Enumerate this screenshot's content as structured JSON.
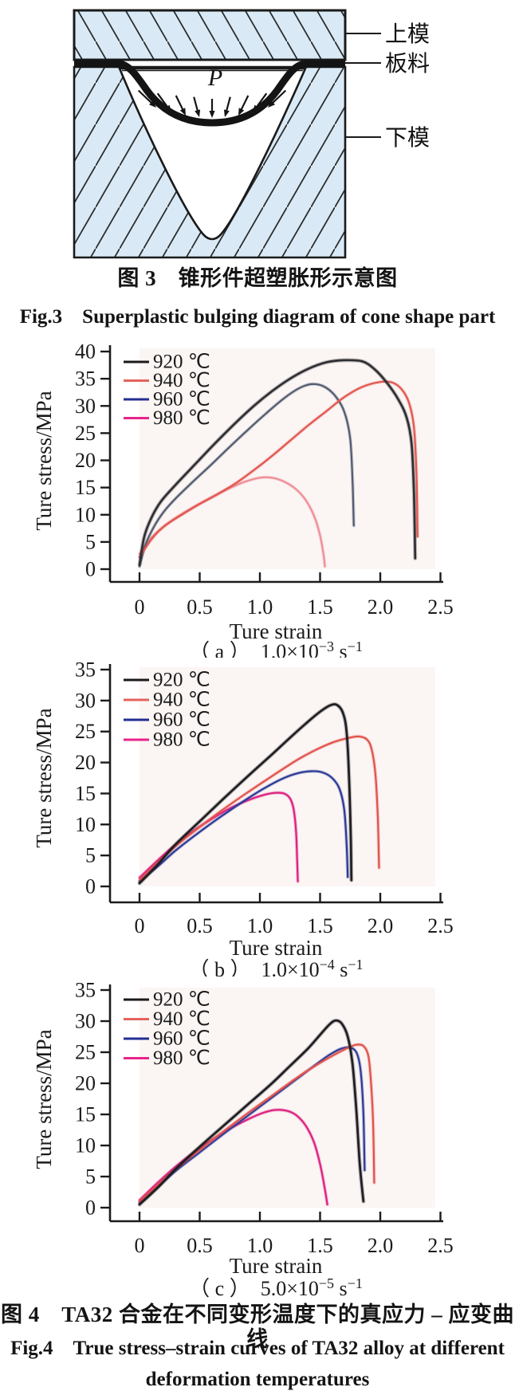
{
  "page": {
    "background": "#ffffff"
  },
  "figure3": {
    "caption_zh": "图 3　锥形件超塑胀形示意图",
    "caption_en": "Fig.3　Superplastic bulging diagram of cone shape part",
    "labels": {
      "upper_die": "上模",
      "sheet": "板料",
      "lower_die": "下模",
      "pressure": "P"
    },
    "colors": {
      "die_fill": "#d9eaf6",
      "outline": "#1a1a1a",
      "sheet": "#141414"
    }
  },
  "figure4": {
    "caption_zh": "图 4　TA32 合金在不同变形温度下的真应力 – 应变曲线",
    "caption_en_line1": "Fig.4　True stress–strain curves of TA32 alloy at different",
    "caption_en_line2": "deformation temperatures"
  },
  "chart_data": [
    {
      "type": "line",
      "id": "a",
      "xlabel": "Ture strain",
      "ylabel": "Ture stress/MPa",
      "caption": {
        "prefix": "（ a ）　",
        "mantissa": "1.0×10",
        "exponent": "−3",
        "unit": " s",
        "unit_exponent": "−1"
      },
      "ylim": [
        0,
        40
      ],
      "xlim": [
        0,
        2.5
      ],
      "yticks": [
        0,
        5,
        10,
        15,
        20,
        25,
        30,
        35,
        40
      ],
      "xticks": {
        "values": [
          0,
          0.5,
          1.0,
          1.5,
          2.0,
          2.5
        ],
        "labels": [
          "0",
          "0.5",
          "1.0",
          "1.5",
          "2.0",
          "2.5"
        ]
      },
      "legend": [
        {
          "label": "920 ℃",
          "color": "#1a1a1a"
        },
        {
          "label": "940 ℃",
          "color": "#e4635c"
        },
        {
          "label": "960 ℃",
          "color": "#232e92"
        },
        {
          "label": "980 ℃",
          "color": "#e8248a"
        }
      ],
      "series": [
        {
          "name": "920 ℃",
          "temperature_C": 920,
          "color": "#2f2f33",
          "points": [
            [
              0,
              0.8
            ],
            [
              0.04,
              6
            ],
            [
              0.1,
              9.5
            ],
            [
              0.18,
              12.5
            ],
            [
              0.3,
              15.5
            ],
            [
              0.45,
              19
            ],
            [
              0.6,
              22.5
            ],
            [
              0.78,
              26.5
            ],
            [
              0.95,
              30
            ],
            [
              1.1,
              32.7
            ],
            [
              1.25,
              35
            ],
            [
              1.4,
              36.8
            ],
            [
              1.55,
              38
            ],
            [
              1.7,
              38.4
            ],
            [
              1.85,
              38.2
            ],
            [
              1.95,
              36.8
            ],
            [
              2.05,
              34.4
            ],
            [
              2.15,
              31.2
            ],
            [
              2.22,
              27.8
            ],
            [
              2.26,
              23
            ],
            [
              2.28,
              14
            ],
            [
              2.29,
              2
            ]
          ]
        },
        {
          "name": "940 ℃",
          "temperature_C": 940,
          "color": "#e2574f",
          "points": [
            [
              0,
              2.2
            ],
            [
              0.1,
              5.5
            ],
            [
              0.2,
              7.8
            ],
            [
              0.35,
              10
            ],
            [
              0.5,
              12
            ],
            [
              0.65,
              13.8
            ],
            [
              0.8,
              15.8
            ],
            [
              0.95,
              18.2
            ],
            [
              1.1,
              20.8
            ],
            [
              1.25,
              23.6
            ],
            [
              1.4,
              26.4
            ],
            [
              1.55,
              29
            ],
            [
              1.7,
              31.6
            ],
            [
              1.85,
              33.5
            ],
            [
              2.0,
              34.4
            ],
            [
              2.1,
              34.3
            ],
            [
              2.18,
              33
            ],
            [
              2.24,
              30.5
            ],
            [
              2.28,
              26
            ],
            [
              2.3,
              18
            ],
            [
              2.31,
              6
            ]
          ]
        },
        {
          "name": "960 ℃",
          "temperature_C": 960,
          "color": "#525c70",
          "points": [
            [
              0,
              0.5
            ],
            [
              0.05,
              4.5
            ],
            [
              0.12,
              7.8
            ],
            [
              0.2,
              10.5
            ],
            [
              0.3,
              13
            ],
            [
              0.45,
              16.2
            ],
            [
              0.6,
              19.3
            ],
            [
              0.75,
              22.5
            ],
            [
              0.9,
              25.6
            ],
            [
              1.05,
              28.6
            ],
            [
              1.2,
              31.4
            ],
            [
              1.33,
              33.3
            ],
            [
              1.43,
              34
            ],
            [
              1.53,
              33.6
            ],
            [
              1.62,
              32
            ],
            [
              1.7,
              29
            ],
            [
              1.75,
              24
            ],
            [
              1.77,
              16
            ],
            [
              1.78,
              8
            ]
          ]
        },
        {
          "name": "980 ℃",
          "temperature_C": 980,
          "color": "#ee8f96",
          "points": [
            [
              0,
              2.8
            ],
            [
              0.1,
              5.8
            ],
            [
              0.2,
              7.8
            ],
            [
              0.32,
              9.7
            ],
            [
              0.45,
              11.4
            ],
            [
              0.6,
              13.2
            ],
            [
              0.75,
              14.9
            ],
            [
              0.88,
              16.1
            ],
            [
              1.0,
              16.8
            ],
            [
              1.1,
              16.8
            ],
            [
              1.2,
              16.1
            ],
            [
              1.3,
              14.7
            ],
            [
              1.38,
              12.7
            ],
            [
              1.45,
              9.8
            ],
            [
              1.5,
              6.2
            ],
            [
              1.53,
              2.5
            ],
            [
              1.54,
              0.5
            ]
          ]
        }
      ]
    },
    {
      "type": "line",
      "id": "b",
      "xlabel": "Ture strain",
      "ylabel": "Ture stress/MPa",
      "caption": {
        "prefix": "（ b ）　",
        "mantissa": "1.0×10",
        "exponent": "−4",
        "unit": " s",
        "unit_exponent": "−1"
      },
      "ylim": [
        0,
        35
      ],
      "xlim": [
        0,
        2.5
      ],
      "yticks": [
        0,
        5,
        10,
        15,
        20,
        25,
        30,
        35
      ],
      "xticks": {
        "values": [
          0,
          0.5,
          1.0,
          1.5,
          2.0,
          2.5
        ],
        "labels": [
          "0",
          "0.5",
          "1.0",
          "1.5",
          "2.0",
          "2.5"
        ]
      },
      "legend": [
        {
          "label": "920 ℃",
          "color": "#1a1a1a"
        },
        {
          "label": "940 ℃",
          "color": "#e4635c"
        },
        {
          "label": "960 ℃",
          "color": "#232e92"
        },
        {
          "label": "980 ℃",
          "color": "#e8248a"
        }
      ],
      "series": [
        {
          "name": "920 ℃",
          "temperature_C": 920,
          "color": "#1e1e22",
          "points": [
            [
              0,
              0.5
            ],
            [
              0.15,
              3.5
            ],
            [
              0.3,
              6.8
            ],
            [
              0.5,
              10.5
            ],
            [
              0.7,
              14.2
            ],
            [
              0.9,
              17.8
            ],
            [
              1.1,
              21.3
            ],
            [
              1.25,
              24
            ],
            [
              1.4,
              26.6
            ],
            [
              1.5,
              28.2
            ],
            [
              1.58,
              29.2
            ],
            [
              1.64,
              29.3
            ],
            [
              1.69,
              28
            ],
            [
              1.72,
              25
            ],
            [
              1.74,
              18
            ],
            [
              1.755,
              8
            ],
            [
              1.76,
              1
            ]
          ]
        },
        {
          "name": "940 ℃",
          "temperature_C": 940,
          "color": "#e2544c",
          "points": [
            [
              0,
              1
            ],
            [
              0.15,
              3.8
            ],
            [
              0.3,
              6.5
            ],
            [
              0.5,
              9.6
            ],
            [
              0.7,
              12.5
            ],
            [
              0.9,
              15.2
            ],
            [
              1.1,
              17.8
            ],
            [
              1.3,
              20.3
            ],
            [
              1.45,
              21.9
            ],
            [
              1.6,
              23.2
            ],
            [
              1.72,
              23.9
            ],
            [
              1.82,
              24.2
            ],
            [
              1.89,
              23.7
            ],
            [
              1.93,
              22
            ],
            [
              1.96,
              18
            ],
            [
              1.98,
              11
            ],
            [
              1.99,
              3
            ]
          ]
        },
        {
          "name": "960 ℃",
          "temperature_C": 960,
          "color": "#2c3a96",
          "points": [
            [
              0,
              0.8
            ],
            [
              0.15,
              3.2
            ],
            [
              0.3,
              5.8
            ],
            [
              0.5,
              8.8
            ],
            [
              0.7,
              11.6
            ],
            [
              0.9,
              14.2
            ],
            [
              1.05,
              16
            ],
            [
              1.2,
              17.5
            ],
            [
              1.32,
              18.3
            ],
            [
              1.43,
              18.6
            ],
            [
              1.52,
              18.4
            ],
            [
              1.6,
              17.5
            ],
            [
              1.66,
              15.8
            ],
            [
              1.7,
              12.5
            ],
            [
              1.72,
              7
            ],
            [
              1.73,
              1.5
            ]
          ]
        },
        {
          "name": "980 ℃",
          "temperature_C": 980,
          "color": "#dd2280",
          "points": [
            [
              0,
              1.4
            ],
            [
              0.15,
              4.2
            ],
            [
              0.3,
              6.8
            ],
            [
              0.45,
              9
            ],
            [
              0.6,
              10.9
            ],
            [
              0.75,
              12.6
            ],
            [
              0.9,
              13.9
            ],
            [
              1.02,
              14.7
            ],
            [
              1.12,
              15.1
            ],
            [
              1.2,
              15
            ],
            [
              1.25,
              14.2
            ],
            [
              1.28,
              12.5
            ],
            [
              1.3,
              9
            ],
            [
              1.31,
              4
            ],
            [
              1.315,
              0.8
            ]
          ]
        }
      ]
    },
    {
      "type": "line",
      "id": "c",
      "xlabel": "Ture strain",
      "ylabel": "Ture stress/MPa",
      "caption": {
        "prefix": "（ c ）　",
        "mantissa": "5.0×10",
        "exponent": "−5",
        "unit": " s",
        "unit_exponent": "−1"
      },
      "ylim": [
        0,
        35
      ],
      "xlim": [
        0,
        2.5
      ],
      "yticks": [
        0,
        5,
        10,
        15,
        20,
        25,
        30,
        35
      ],
      "xticks": {
        "values": [
          0,
          0.5,
          1.0,
          1.5,
          2.0,
          2.5
        ],
        "labels": [
          "0",
          "0.5",
          "1.0",
          "1.5",
          "2.0",
          "2.5"
        ]
      },
      "legend": [
        {
          "label": "920 ℃",
          "color": "#1a1a1a"
        },
        {
          "label": "940 ℃",
          "color": "#e4635c"
        },
        {
          "label": "960 ℃",
          "color": "#232e92"
        },
        {
          "label": "980 ℃",
          "color": "#e8248a"
        }
      ],
      "series": [
        {
          "name": "920 ℃",
          "temperature_C": 920,
          "color": "#1e1e22",
          "points": [
            [
              0,
              0.5
            ],
            [
              0.15,
              3.2
            ],
            [
              0.3,
              6.2
            ],
            [
              0.5,
              9.8
            ],
            [
              0.7,
              13.2
            ],
            [
              0.9,
              16.6
            ],
            [
              1.1,
              20
            ],
            [
              1.25,
              22.8
            ],
            [
              1.4,
              25.6
            ],
            [
              1.5,
              27.8
            ],
            [
              1.58,
              29.5
            ],
            [
              1.63,
              30.1
            ],
            [
              1.68,
              29.6
            ],
            [
              1.73,
              27.5
            ],
            [
              1.77,
              23
            ],
            [
              1.8,
              16
            ],
            [
              1.83,
              7
            ],
            [
              1.86,
              1
            ]
          ]
        },
        {
          "name": "940 ℃",
          "temperature_C": 940,
          "color": "#e2544c",
          "points": [
            [
              0,
              1
            ],
            [
              0.15,
              3.6
            ],
            [
              0.3,
              6.2
            ],
            [
              0.5,
              9.3
            ],
            [
              0.7,
              12.3
            ],
            [
              0.9,
              15.2
            ],
            [
              1.1,
              18
            ],
            [
              1.3,
              20.8
            ],
            [
              1.45,
              22.7
            ],
            [
              1.6,
              24.4
            ],
            [
              1.72,
              25.6
            ],
            [
              1.8,
              26.2
            ],
            [
              1.86,
              26
            ],
            [
              1.9,
              24.5
            ],
            [
              1.92,
              21
            ],
            [
              1.94,
              14
            ],
            [
              1.95,
              4
            ]
          ]
        },
        {
          "name": "960 ℃",
          "temperature_C": 960,
          "color": "#2e3c98",
          "points": [
            [
              0,
              0.8
            ],
            [
              0.15,
              3.3
            ],
            [
              0.3,
              5.9
            ],
            [
              0.5,
              8.9
            ],
            [
              0.7,
              11.9
            ],
            [
              0.9,
              14.8
            ],
            [
              1.1,
              17.7
            ],
            [
              1.3,
              20.6
            ],
            [
              1.45,
              22.8
            ],
            [
              1.58,
              24.6
            ],
            [
              1.68,
              25.6
            ],
            [
              1.76,
              25.7
            ],
            [
              1.81,
              24.6
            ],
            [
              1.84,
              21.5
            ],
            [
              1.86,
              15
            ],
            [
              1.87,
              6
            ]
          ]
        },
        {
          "name": "980 ℃",
          "temperature_C": 980,
          "color": "#dd2280",
          "points": [
            [
              0,
              1.2
            ],
            [
              0.15,
              4
            ],
            [
              0.3,
              6.6
            ],
            [
              0.45,
              8.9
            ],
            [
              0.6,
              10.9
            ],
            [
              0.75,
              12.7
            ],
            [
              0.9,
              14.2
            ],
            [
              1.02,
              15.2
            ],
            [
              1.12,
              15.7
            ],
            [
              1.22,
              15.6
            ],
            [
              1.3,
              14.9
            ],
            [
              1.38,
              13.2
            ],
            [
              1.45,
              10.5
            ],
            [
              1.5,
              7
            ],
            [
              1.54,
              3
            ],
            [
              1.56,
              0.5
            ]
          ]
        }
      ]
    }
  ]
}
